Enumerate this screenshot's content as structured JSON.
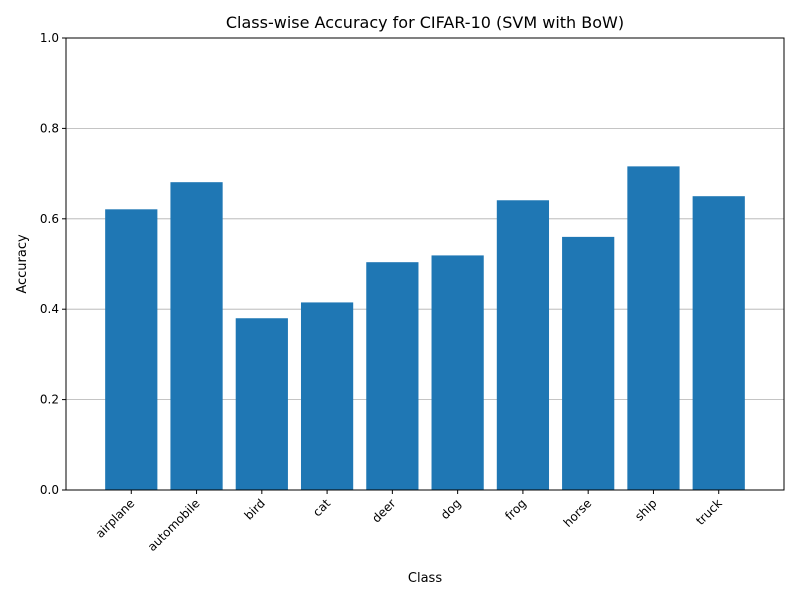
{
  "chart_data": {
    "type": "bar",
    "title": "Class-wise Accuracy for CIFAR-10 (SVM with BoW)",
    "xlabel": "Class",
    "ylabel": "Accuracy",
    "categories": [
      "airplane",
      "automobile",
      "bird",
      "cat",
      "deer",
      "dog",
      "frog",
      "horse",
      "ship",
      "truck"
    ],
    "values": [
      0.621,
      0.681,
      0.38,
      0.415,
      0.504,
      0.519,
      0.641,
      0.56,
      0.716,
      0.65
    ],
    "ylim": [
      0,
      1.0
    ],
    "yticks": [
      0.0,
      0.2,
      0.4,
      0.6,
      0.8,
      1.0
    ],
    "ytick_labels": [
      "0.0",
      "0.2",
      "0.4",
      "0.6",
      "0.8",
      "1.0"
    ],
    "grid": "y-axis major",
    "bar_color": "#1f77b4",
    "grid_color": "#b0b0b0",
    "xtick_rotation": 45
  }
}
